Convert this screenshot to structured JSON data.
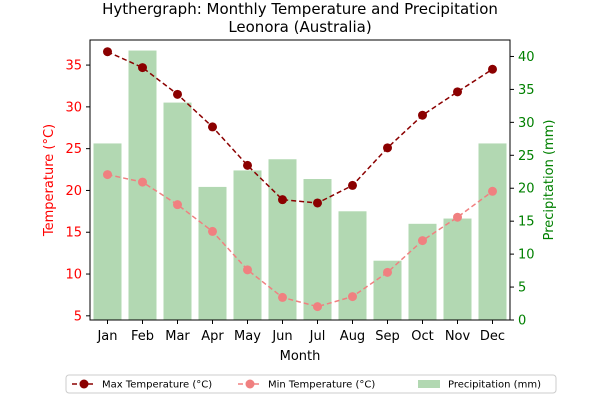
{
  "chart_data": {
    "type": "bar+line",
    "title": "Hythergraph: Monthly Temperature and Precipitation",
    "subtitle": "Leonora (Australia)",
    "xlabel": "Month",
    "ylabel_left": "Temperature (°C)",
    "ylabel_right": "Precipitation (mm)",
    "categories": [
      "Jan",
      "Feb",
      "Mar",
      "Apr",
      "May",
      "Jun",
      "Jul",
      "Aug",
      "Sep",
      "Oct",
      "Nov",
      "Dec"
    ],
    "ylim_left": [
      4.5,
      38
    ],
    "ylim_right": [
      0,
      42.5
    ],
    "yticks_left": [
      5,
      10,
      15,
      20,
      25,
      30,
      35
    ],
    "yticks_right": [
      0,
      5,
      10,
      15,
      20,
      25,
      30,
      35,
      40
    ],
    "series": [
      {
        "name": "Max Temperature (°C)",
        "kind": "line",
        "axis": "left",
        "color": "#8b0000",
        "linestyle": "dashed",
        "values": [
          36.6,
          34.7,
          31.5,
          27.6,
          23.0,
          18.9,
          18.5,
          20.6,
          25.1,
          29.0,
          31.8,
          34.5
        ]
      },
      {
        "name": "Min Temperature (°C)",
        "kind": "line",
        "axis": "left",
        "color": "#f08080",
        "linestyle": "dashed",
        "values": [
          21.9,
          21.0,
          18.3,
          15.1,
          10.5,
          7.2,
          6.1,
          7.3,
          10.2,
          14.0,
          16.8,
          19.9
        ]
      },
      {
        "name": "Precipitation (mm)",
        "kind": "bar",
        "axis": "right",
        "color": "#b2d8b2",
        "values": [
          26.8,
          40.9,
          33.0,
          20.2,
          22.7,
          24.4,
          21.4,
          16.5,
          9.0,
          14.6,
          15.4,
          26.8
        ]
      }
    ],
    "axis_colors": {
      "left": "#ff0000",
      "right": "#008000"
    },
    "legend": "bottom-center",
    "grid": false
  }
}
